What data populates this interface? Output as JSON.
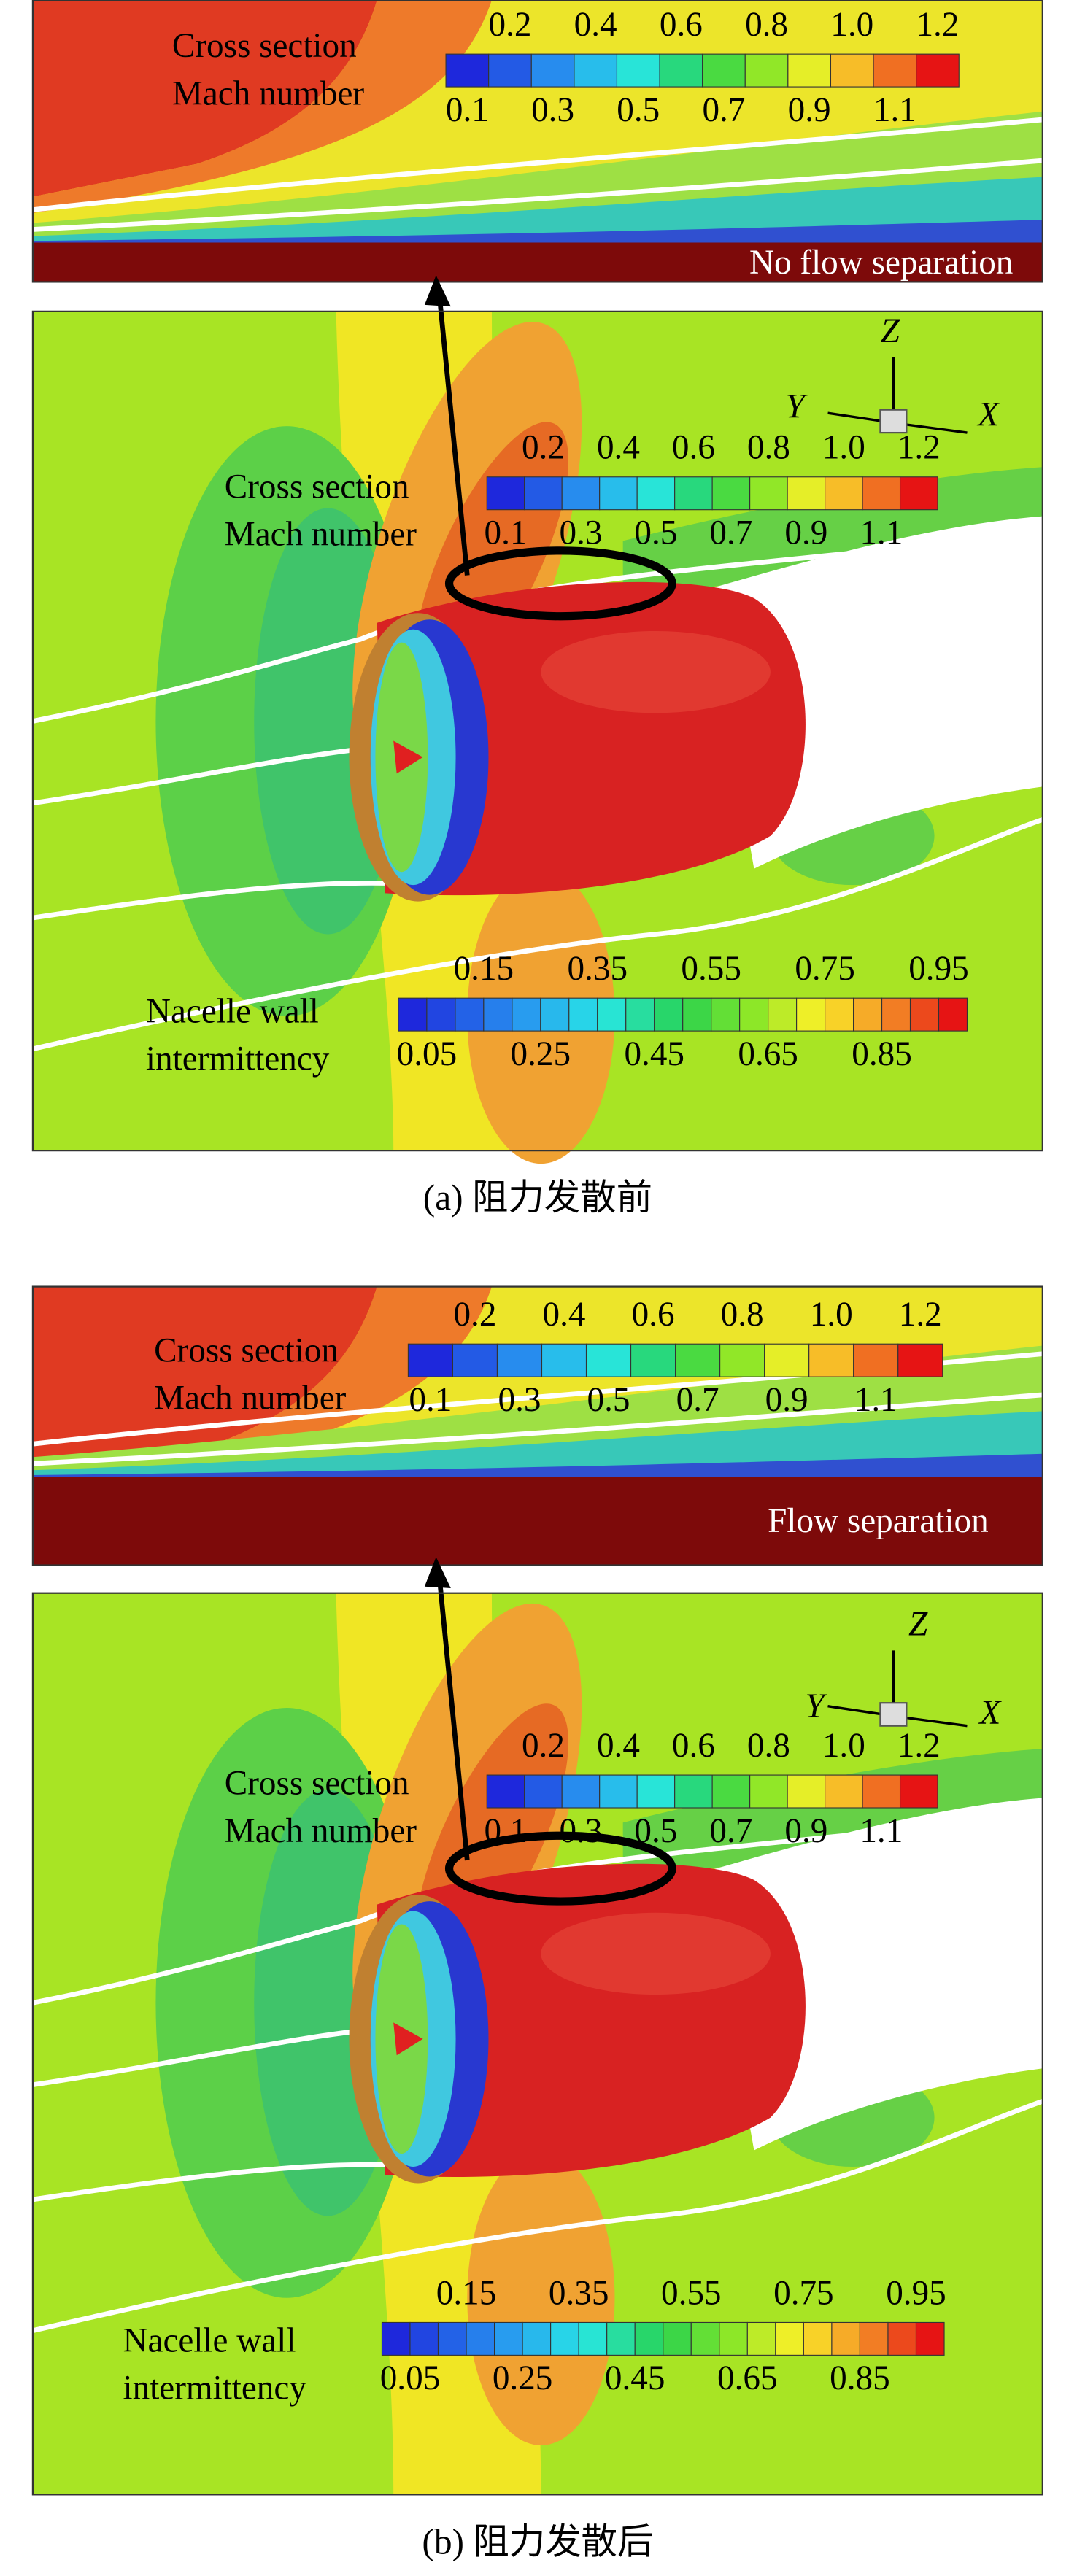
{
  "panels": [
    {
      "caption": "(a) 阻力发散前",
      "inset": {
        "legend": {
          "lines": [
            "Cross section",
            "Mach number"
          ],
          "top": [
            "0.2",
            "0.4",
            "0.6",
            "0.8",
            "1.0",
            "1.2"
          ],
          "bottom": [
            "0.1",
            "0.3",
            "0.5",
            "0.7",
            "0.9",
            "1.1"
          ]
        },
        "note": "No flow separation"
      },
      "main": {
        "axes": [
          "Z",
          "Y",
          "X"
        ],
        "mach_legend": {
          "lines": [
            "Cross section",
            "Mach number"
          ],
          "top": [
            "0.2",
            "0.4",
            "0.6",
            "0.8",
            "1.0",
            "1.2"
          ],
          "bottom": [
            "0.1",
            "0.3",
            "0.5",
            "0.7",
            "0.9",
            "1.1"
          ]
        },
        "wall_legend": {
          "lines": [
            "Nacelle wall",
            "intermittency"
          ],
          "top": [
            "0.15",
            "0.35",
            "0.55",
            "0.75",
            "0.95"
          ],
          "bottom": [
            "0.05",
            "0.25",
            "0.45",
            "0.65",
            "0.85"
          ]
        }
      }
    },
    {
      "caption": "(b) 阻力发散后",
      "inset": {
        "legend": {
          "lines": [
            "Cross section",
            "Mach number"
          ],
          "top": [
            "0.2",
            "0.4",
            "0.6",
            "0.8",
            "1.0",
            "1.2"
          ],
          "bottom": [
            "0.1",
            "0.3",
            "0.5",
            "0.7",
            "0.9",
            "1.1"
          ]
        },
        "note": "Flow separation"
      },
      "main": {
        "axes": [
          "Z",
          "Y",
          "X"
        ],
        "mach_legend": {
          "lines": [
            "Cross section",
            "Mach number"
          ],
          "top": [
            "0.2",
            "0.4",
            "0.6",
            "0.8",
            "1.0",
            "1.2"
          ],
          "bottom": [
            "0.1",
            "0.3",
            "0.5",
            "0.7",
            "0.9",
            "1.1"
          ]
        },
        "wall_legend": {
          "lines": [
            "Nacelle wall",
            "intermittency"
          ],
          "top": [
            "0.15",
            "0.35",
            "0.55",
            "0.75",
            "0.95"
          ],
          "bottom": [
            "0.05",
            "0.25",
            "0.45",
            "0.65",
            "0.85"
          ]
        }
      }
    }
  ]
}
